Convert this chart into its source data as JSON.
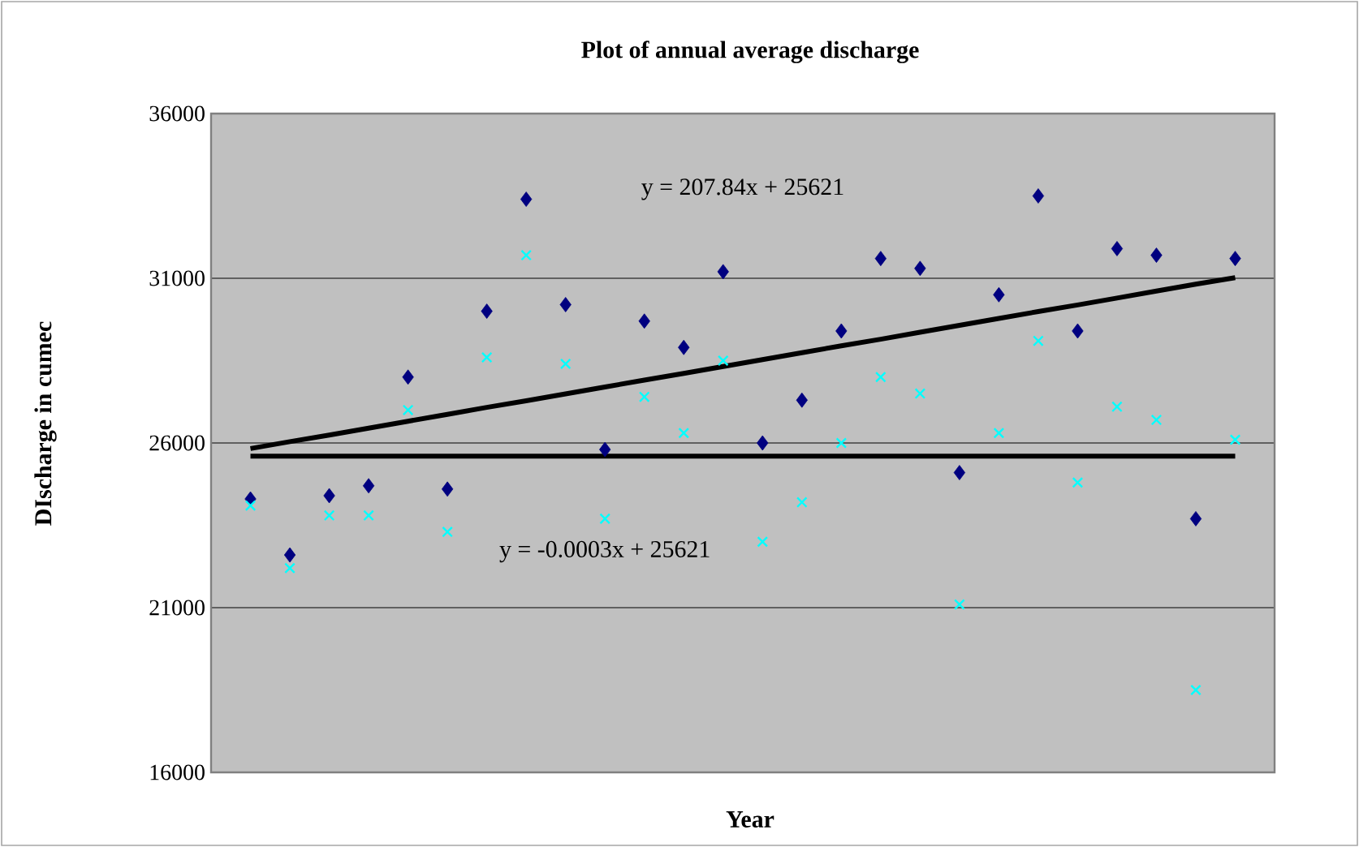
{
  "chart_data": {
    "type": "scatter",
    "title": "Plot of annual average discharge",
    "xlabel": "Year",
    "ylabel": "DIscharge in cumec",
    "categories": [
      null,
      null,
      null,
      null,
      null,
      null,
      null,
      null,
      null,
      null,
      null,
      null,
      null,
      null,
      null,
      null,
      null,
      null,
      null,
      null,
      null,
      null,
      null,
      null,
      null,
      null
    ],
    "ylim": [
      16000,
      36000
    ],
    "yticks": [
      16000,
      21000,
      26000,
      31000,
      36000
    ],
    "grid": "y",
    "tick_labels": "y",
    "series": [
      {
        "color": "#000080",
        "marker": "diamond",
        "values": [
          24300,
          22600,
          24400,
          24700,
          28000,
          24600,
          30000,
          33400,
          30200,
          25800,
          29700,
          28900,
          31200,
          26000,
          27300,
          29400,
          31600,
          31300,
          25100,
          30500,
          33500,
          29400,
          31900,
          31700,
          23700,
          31600
        ]
      },
      {
        "color": "#00ffff",
        "marker": "cross",
        "values": [
          24100,
          22200,
          23800,
          23800,
          27000,
          23300,
          28600,
          31700,
          28400,
          23700,
          27400,
          26300,
          28500,
          23000,
          24200,
          26000,
          28000,
          27500,
          21100,
          26300,
          29100,
          24800,
          27100,
          26700,
          18500,
          26100
        ]
      },
      {
        "type": "line",
        "color": "#000000",
        "marker": "none",
        "line_style": "solid",
        "values": [
          25830,
          26040,
          26240,
          26450,
          26660,
          26870,
          27080,
          27280,
          27490,
          27700,
          27910,
          28110,
          28320,
          28530,
          28740,
          28950,
          29150,
          29360,
          29570,
          29780,
          29990,
          30190,
          30400,
          30610,
          30820,
          31020
        ]
      },
      {
        "type": "line",
        "color": "#000000",
        "marker": "none",
        "line_style": "solid",
        "values": [
          25600,
          25600,
          25600,
          25600,
          25600,
          25600,
          25600,
          25600,
          25600,
          25600,
          25600,
          25600,
          25600,
          25600,
          25600,
          25600,
          25600,
          25600,
          25600,
          25600,
          25600,
          25600,
          25600,
          25600,
          25600,
          25600
        ]
      }
    ],
    "annotations": [
      "y = 207.84x + 25621",
      "y = -0.0003x + 25621"
    ]
  }
}
